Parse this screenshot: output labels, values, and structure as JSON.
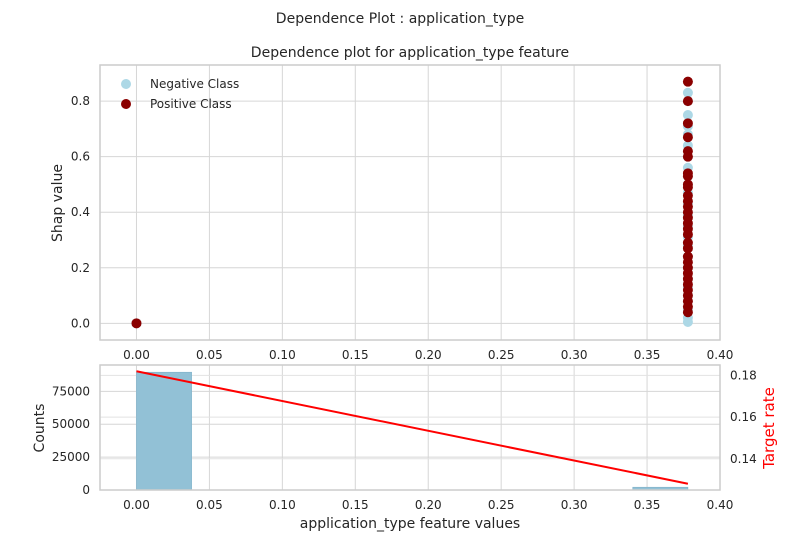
{
  "suptitle": "Dependence Plot : application_type",
  "chart_data": [
    {
      "type": "scatter",
      "title": "Dependence plot for application_type feature",
      "xlabel": "",
      "ylabel": "Shap value",
      "xlim": [
        -0.025,
        0.4
      ],
      "ylim": [
        -0.06,
        0.93
      ],
      "xticks": [
        0.0,
        0.05,
        0.1,
        0.15,
        0.2,
        0.25,
        0.3,
        0.35,
        0.4
      ],
      "xtick_labels": [
        "0.00",
        "0.05",
        "0.10",
        "0.15",
        "0.20",
        "0.25",
        "0.30",
        "0.35",
        "0.40"
      ],
      "yticks": [
        0.0,
        0.2,
        0.4,
        0.6,
        0.8
      ],
      "ytick_labels": [
        "0.0",
        "0.2",
        "0.4",
        "0.6",
        "0.8"
      ],
      "grid": true,
      "legend_position": "top-left",
      "series": [
        {
          "name": "Negative Class",
          "color": "#add8e6",
          "x": [
            0.0,
            0.378,
            0.378,
            0.378,
            0.378,
            0.378,
            0.378,
            0.378,
            0.378,
            0.378,
            0.378,
            0.378,
            0.378,
            0.378,
            0.378,
            0.378,
            0.378,
            0.378,
            0.378,
            0.378,
            0.378,
            0.378,
            0.378,
            0.378,
            0.378,
            0.378
          ],
          "y": [
            0.0,
            0.005,
            0.02,
            0.05,
            0.08,
            0.1,
            0.13,
            0.16,
            0.2,
            0.24,
            0.28,
            0.31,
            0.35,
            0.39,
            0.43,
            0.47,
            0.5,
            0.53,
            0.56,
            0.6,
            0.64,
            0.68,
            0.71,
            0.75,
            0.8,
            0.83
          ]
        },
        {
          "name": "Positive Class",
          "color": "#8b0000",
          "x": [
            0.0,
            0.378,
            0.378,
            0.378,
            0.378,
            0.378,
            0.378,
            0.378,
            0.378,
            0.378,
            0.378,
            0.378,
            0.378,
            0.378,
            0.378,
            0.378,
            0.378,
            0.378,
            0.378,
            0.378,
            0.378,
            0.378,
            0.378,
            0.378,
            0.378,
            0.378,
            0.378,
            0.378,
            0.378,
            0.378,
            0.378,
            0.378
          ],
          "y": [
            0.0,
            0.04,
            0.06,
            0.08,
            0.1,
            0.12,
            0.14,
            0.16,
            0.18,
            0.2,
            0.22,
            0.24,
            0.27,
            0.29,
            0.32,
            0.34,
            0.36,
            0.38,
            0.4,
            0.42,
            0.44,
            0.46,
            0.49,
            0.5,
            0.53,
            0.54,
            0.6,
            0.62,
            0.67,
            0.72,
            0.8,
            0.87
          ]
        }
      ]
    },
    {
      "type": "bar",
      "title": "",
      "xlabel": "application_type feature values",
      "ylabel": "Counts",
      "y2label": "Target rate",
      "xlim": [
        -0.025,
        0.4
      ],
      "ylim": [
        0,
        95000
      ],
      "y2lim": [
        0.125,
        0.185
      ],
      "xticks": [
        0.0,
        0.05,
        0.1,
        0.15,
        0.2,
        0.25,
        0.3,
        0.35,
        0.4
      ],
      "xtick_labels": [
        "0.00",
        "0.05",
        "0.10",
        "0.15",
        "0.20",
        "0.25",
        "0.30",
        "0.35",
        "0.40"
      ],
      "yticks": [
        0,
        25000,
        50000,
        75000
      ],
      "ytick_labels": [
        "0",
        "25000",
        "50000",
        "75000"
      ],
      "y2ticks": [
        0.14,
        0.16,
        0.18
      ],
      "y2tick_labels": [
        "0.14",
        "0.16",
        "0.18"
      ],
      "grid": true,
      "bar_color": "#92c1d6",
      "line_color": "#ff0000",
      "bars": [
        {
          "x0": 0.0,
          "x1": 0.0378,
          "value": 89500
        },
        {
          "x0": 0.3402,
          "x1": 0.378,
          "value": 2100
        }
      ],
      "target_rate_line": {
        "x": [
          0.0,
          0.378
        ],
        "y": [
          0.182,
          0.128
        ]
      }
    }
  ]
}
